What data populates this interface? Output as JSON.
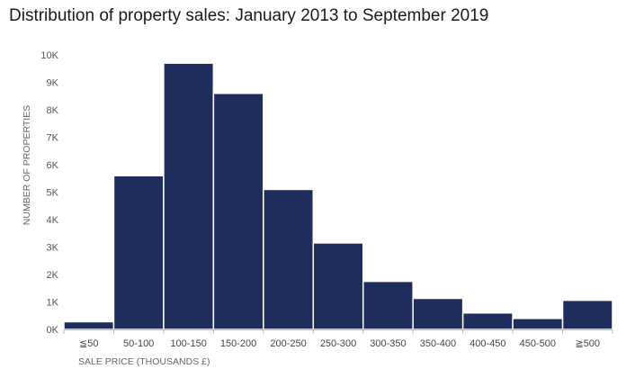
{
  "chart_data": {
    "type": "bar",
    "title": "Distribution of property sales: January 2013 to September 2019",
    "xlabel": "SALE PRICE (THOUSANDS £)",
    "ylabel": "NUMBER OF PROPERTIES",
    "categories": [
      "≦50",
      "50-100",
      "100-150",
      "150-200",
      "200-250",
      "250-300",
      "300-350",
      "350-400",
      "400-450",
      "450-500",
      "≧500"
    ],
    "values": [
      280,
      5600,
      9700,
      8600,
      5100,
      3150,
      1750,
      1130,
      600,
      400,
      1060
    ],
    "ylim": [
      0,
      10000
    ],
    "yticks": [
      0,
      1000,
      2000,
      3000,
      4000,
      5000,
      6000,
      7000,
      8000,
      9000,
      10000
    ],
    "ytick_labels": [
      "0K",
      "1K",
      "2K",
      "3K",
      "4K",
      "5K",
      "6K",
      "7K",
      "8K",
      "9K",
      "10K"
    ],
    "grid": false,
    "colors": {
      "bar": "#1f2d5c",
      "bar_edge": "#ffffff",
      "axis": "#bbbbbb"
    }
  }
}
